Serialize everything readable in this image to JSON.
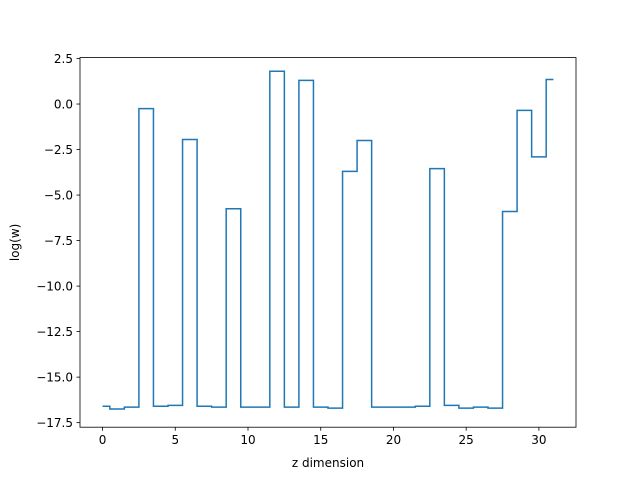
{
  "chart_data": {
    "type": "line",
    "drawstyle": "steps-mid",
    "xlabel": "z dimension",
    "ylabel": "log(w)",
    "xlim": [
      -1.55,
      32.55
    ],
    "ylim": [
      -17.75,
      2.55
    ],
    "xticks": [
      0,
      5,
      10,
      15,
      20,
      25,
      30
    ],
    "yticks": [
      2.5,
      0.0,
      -2.5,
      -5.0,
      -7.5,
      -10.0,
      -12.5,
      -15.0,
      -17.5
    ],
    "grid": false,
    "legend": "none",
    "series": [
      {
        "color": "#1f77b4",
        "x": [
          0,
          1,
          2,
          3,
          4,
          5,
          6,
          7,
          8,
          9,
          10,
          11,
          12,
          13,
          14,
          15,
          16,
          17,
          18,
          19,
          20,
          21,
          22,
          23,
          24,
          25,
          26,
          27,
          28,
          29,
          30,
          31
        ],
        "y": [
          -16.6,
          -16.75,
          -16.65,
          -0.25,
          -16.6,
          -16.55,
          -1.95,
          -16.6,
          -16.65,
          -5.75,
          -16.65,
          -16.65,
          1.8,
          -16.65,
          1.3,
          -16.65,
          -16.7,
          -3.7,
          -2.0,
          -16.65,
          -16.65,
          -16.65,
          -16.6,
          -3.55,
          -16.55,
          -16.7,
          -16.65,
          -16.7,
          -5.9,
          -0.35,
          -2.9,
          1.35
        ]
      }
    ]
  }
}
